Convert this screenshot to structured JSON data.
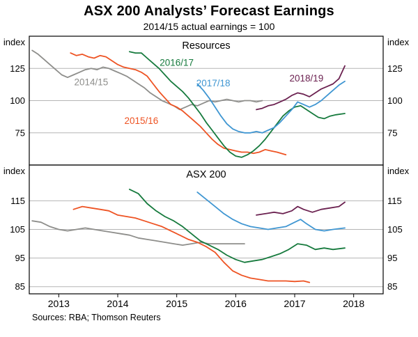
{
  "header": {
    "title": "ASX 200 Analysts’ Forecast Earnings",
    "subtitle": "2014/15 actual earnings = 100"
  },
  "footer": {
    "source": "Sources: RBA; Thomson Reuters"
  },
  "style": {
    "grid_color": "#b5b5b5",
    "axis_color": "#000000",
    "series_colors": {
      "2014/15": "#8e8e8b",
      "2015/16": "#ee5323",
      "2016/17": "#167a3d",
      "2017/18": "#3f96d2",
      "2018/19": "#6b2150"
    }
  },
  "chart_data": [
    {
      "type": "line",
      "panel": "Resources",
      "unit": "index",
      "xlim": [
        2012.5,
        2018.5
      ],
      "xticks": [
        2013,
        2014,
        2015,
        2016,
        2017,
        2018
      ],
      "ylim": [
        50,
        150
      ],
      "yticks": [
        75,
        100,
        125
      ],
      "series": [
        {
          "name": "2014/15",
          "color": "#8e8e8b",
          "x": [
            2012.55,
            2012.65,
            2012.75,
            2012.85,
            2012.95,
            2013.05,
            2013.15,
            2013.25,
            2013.35,
            2013.45,
            2013.55,
            2013.65,
            2013.75,
            2013.85,
            2013.95,
            2014.05,
            2014.15,
            2014.25,
            2014.35,
            2014.45,
            2014.55,
            2014.65,
            2014.75,
            2014.85,
            2014.95,
            2015.05,
            2015.15,
            2015.25,
            2015.35,
            2015.45,
            2015.55,
            2015.65,
            2015.75,
            2015.85,
            2015.95,
            2016.05,
            2016.15,
            2016.25,
            2016.35,
            2016.45
          ],
          "y": [
            139,
            136,
            132,
            128,
            124,
            120,
            118,
            120,
            122,
            124,
            125,
            124,
            126,
            125,
            123,
            121,
            119,
            116,
            113,
            110,
            106,
            103,
            100,
            98,
            96,
            93,
            95,
            97,
            96,
            98,
            100,
            99,
            100,
            101,
            100,
            99,
            100,
            100,
            99,
            100
          ]
        },
        {
          "name": "2015/16",
          "color": "#ee5323",
          "x": [
            2013.2,
            2013.3,
            2013.4,
            2013.5,
            2013.6,
            2013.7,
            2013.8,
            2013.9,
            2014.0,
            2014.1,
            2014.2,
            2014.3,
            2014.4,
            2014.5,
            2014.6,
            2014.7,
            2014.8,
            2014.9,
            2015.0,
            2015.1,
            2015.2,
            2015.3,
            2015.4,
            2015.5,
            2015.6,
            2015.7,
            2015.8,
            2015.9,
            2016.0,
            2016.1,
            2016.2,
            2016.3,
            2016.4,
            2016.5,
            2016.6,
            2016.7,
            2016.85
          ],
          "y": [
            137,
            135,
            136,
            134,
            133,
            135,
            134,
            131,
            128,
            126,
            125,
            124,
            122,
            119,
            113,
            107,
            102,
            97,
            95,
            92,
            88,
            84,
            80,
            75,
            70,
            66,
            63,
            62,
            61,
            60,
            60,
            59,
            60,
            62,
            61,
            60,
            58
          ]
        },
        {
          "name": "2016/17",
          "color": "#167a3d",
          "x": [
            2014.2,
            2014.3,
            2014.4,
            2014.5,
            2014.6,
            2014.7,
            2014.8,
            2014.9,
            2015.0,
            2015.1,
            2015.2,
            2015.3,
            2015.4,
            2015.5,
            2015.6,
            2015.7,
            2015.8,
            2015.9,
            2016.0,
            2016.1,
            2016.2,
            2016.3,
            2016.4,
            2016.5,
            2016.6,
            2016.7,
            2016.8,
            2016.9,
            2017.0,
            2017.1,
            2017.2,
            2017.3,
            2017.4,
            2017.5,
            2017.6,
            2017.7,
            2017.85
          ],
          "y": [
            138,
            137,
            137,
            133,
            129,
            125,
            120,
            115,
            111,
            107,
            102,
            96,
            90,
            83,
            77,
            71,
            65,
            60,
            57,
            56,
            58,
            61,
            65,
            70,
            76,
            82,
            88,
            92,
            95,
            96,
            93,
            90,
            87,
            86,
            88,
            89,
            90
          ]
        },
        {
          "name": "2017/18",
          "color": "#3f96d2",
          "x": [
            2015.35,
            2015.45,
            2015.55,
            2015.65,
            2015.75,
            2015.85,
            2015.95,
            2016.05,
            2016.15,
            2016.25,
            2016.35,
            2016.45,
            2016.55,
            2016.65,
            2016.75,
            2016.85,
            2016.95,
            2017.05,
            2017.15,
            2017.25,
            2017.35,
            2017.45,
            2017.55,
            2017.65,
            2017.75,
            2017.85
          ],
          "y": [
            113,
            108,
            102,
            95,
            88,
            82,
            78,
            76,
            75,
            75,
            76,
            75,
            77,
            79,
            83,
            88,
            93,
            99,
            97,
            95,
            97,
            100,
            104,
            108,
            112,
            115
          ]
        },
        {
          "name": "2018/19",
          "color": "#6b2150",
          "x": [
            2016.35,
            2016.45,
            2016.55,
            2016.65,
            2016.75,
            2016.85,
            2016.95,
            2017.05,
            2017.15,
            2017.25,
            2017.35,
            2017.45,
            2017.55,
            2017.65,
            2017.75,
            2017.85
          ],
          "y": [
            93,
            94,
            96,
            97,
            99,
            101,
            104,
            106,
            105,
            103,
            106,
            109,
            111,
            113,
            117,
            127
          ]
        }
      ],
      "labels": [
        {
          "text": "2014/15",
          "x": 2013.55,
          "y": 112,
          "color": "#8e8e8b"
        },
        {
          "text": "2015/16",
          "x": 2014.4,
          "y": 82,
          "color": "#ee5323"
        },
        {
          "text": "2016/17",
          "x": 2015.0,
          "y": 127,
          "color": "#167a3d"
        },
        {
          "text": "2017/18",
          "x": 2015.62,
          "y": 111,
          "color": "#3f96d2"
        },
        {
          "text": "2018/19",
          "x": 2017.2,
          "y": 115,
          "color": "#6b2150"
        }
      ]
    },
    {
      "type": "line",
      "panel": "ASX 200",
      "unit": "index",
      "xlim": [
        2012.5,
        2018.5
      ],
      "xticks": [
        2013,
        2014,
        2015,
        2016,
        2017,
        2018
      ],
      "ylim": [
        82.5,
        127.5
      ],
      "yticks": [
        85,
        95,
        105,
        115
      ],
      "series": [
        {
          "name": "2014/15",
          "color": "#8e8e8b",
          "x": [
            2012.55,
            2012.7,
            2012.85,
            2013.0,
            2013.15,
            2013.3,
            2013.45,
            2013.6,
            2013.75,
            2013.9,
            2014.05,
            2014.2,
            2014.35,
            2014.5,
            2014.65,
            2014.8,
            2014.95,
            2015.1,
            2015.25,
            2015.4,
            2015.55,
            2015.7,
            2015.85,
            2016.0,
            2016.15
          ],
          "y": [
            108,
            107.5,
            106,
            105,
            104.5,
            105,
            105.5,
            105,
            104.5,
            104,
            103.5,
            103,
            102,
            101.5,
            101,
            100.5,
            100,
            99.5,
            100,
            100.5,
            100,
            100,
            100,
            100,
            100
          ]
        },
        {
          "name": "2015/16",
          "color": "#ee5323",
          "x": [
            2013.25,
            2013.4,
            2013.55,
            2013.7,
            2013.85,
            2014.0,
            2014.15,
            2014.3,
            2014.45,
            2014.6,
            2014.75,
            2014.9,
            2015.05,
            2015.2,
            2015.35,
            2015.5,
            2015.65,
            2015.8,
            2015.95,
            2016.1,
            2016.25,
            2016.4,
            2016.55,
            2016.7,
            2016.85,
            2017.0,
            2017.15,
            2017.25
          ],
          "y": [
            112,
            113,
            112.5,
            112,
            111.5,
            110,
            109.5,
            109,
            108,
            107,
            106,
            104.5,
            103,
            101.5,
            100.5,
            99,
            97,
            93.5,
            90.5,
            89,
            88,
            87.5,
            87,
            87,
            87,
            86.8,
            87,
            86.5
          ]
        },
        {
          "name": "2016/17",
          "color": "#167a3d",
          "x": [
            2014.2,
            2014.35,
            2014.5,
            2014.65,
            2014.8,
            2014.95,
            2015.1,
            2015.25,
            2015.4,
            2015.55,
            2015.7,
            2015.85,
            2016.0,
            2016.15,
            2016.3,
            2016.45,
            2016.6,
            2016.75,
            2016.9,
            2017.05,
            2017.2,
            2017.35,
            2017.5,
            2017.65,
            2017.85
          ],
          "y": [
            119,
            117.5,
            114,
            111.5,
            109.5,
            108,
            106,
            103.5,
            101,
            99.5,
            98,
            96,
            94.5,
            93.5,
            94,
            94.5,
            95.5,
            96.5,
            98,
            100,
            99.5,
            98,
            98.5,
            98,
            98.5
          ]
        },
        {
          "name": "2017/18",
          "color": "#3f96d2",
          "x": [
            2015.35,
            2015.5,
            2015.65,
            2015.8,
            2015.95,
            2016.1,
            2016.25,
            2016.4,
            2016.55,
            2016.7,
            2016.85,
            2017.0,
            2017.1,
            2017.2,
            2017.35,
            2017.5,
            2017.65,
            2017.85
          ],
          "y": [
            118,
            115.5,
            113,
            110.5,
            108.5,
            107,
            106,
            105.5,
            105,
            105.5,
            106,
            107.5,
            108.5,
            107,
            105,
            104.5,
            105,
            105.5
          ]
        },
        {
          "name": "2018/19",
          "color": "#6b2150",
          "x": [
            2016.35,
            2016.5,
            2016.65,
            2016.8,
            2016.95,
            2017.05,
            2017.15,
            2017.3,
            2017.45,
            2017.6,
            2017.75,
            2017.85
          ],
          "y": [
            110,
            110.5,
            111,
            110.5,
            111.5,
            113,
            112,
            111,
            112,
            112.5,
            113,
            114.5
          ]
        }
      ],
      "labels": []
    }
  ]
}
